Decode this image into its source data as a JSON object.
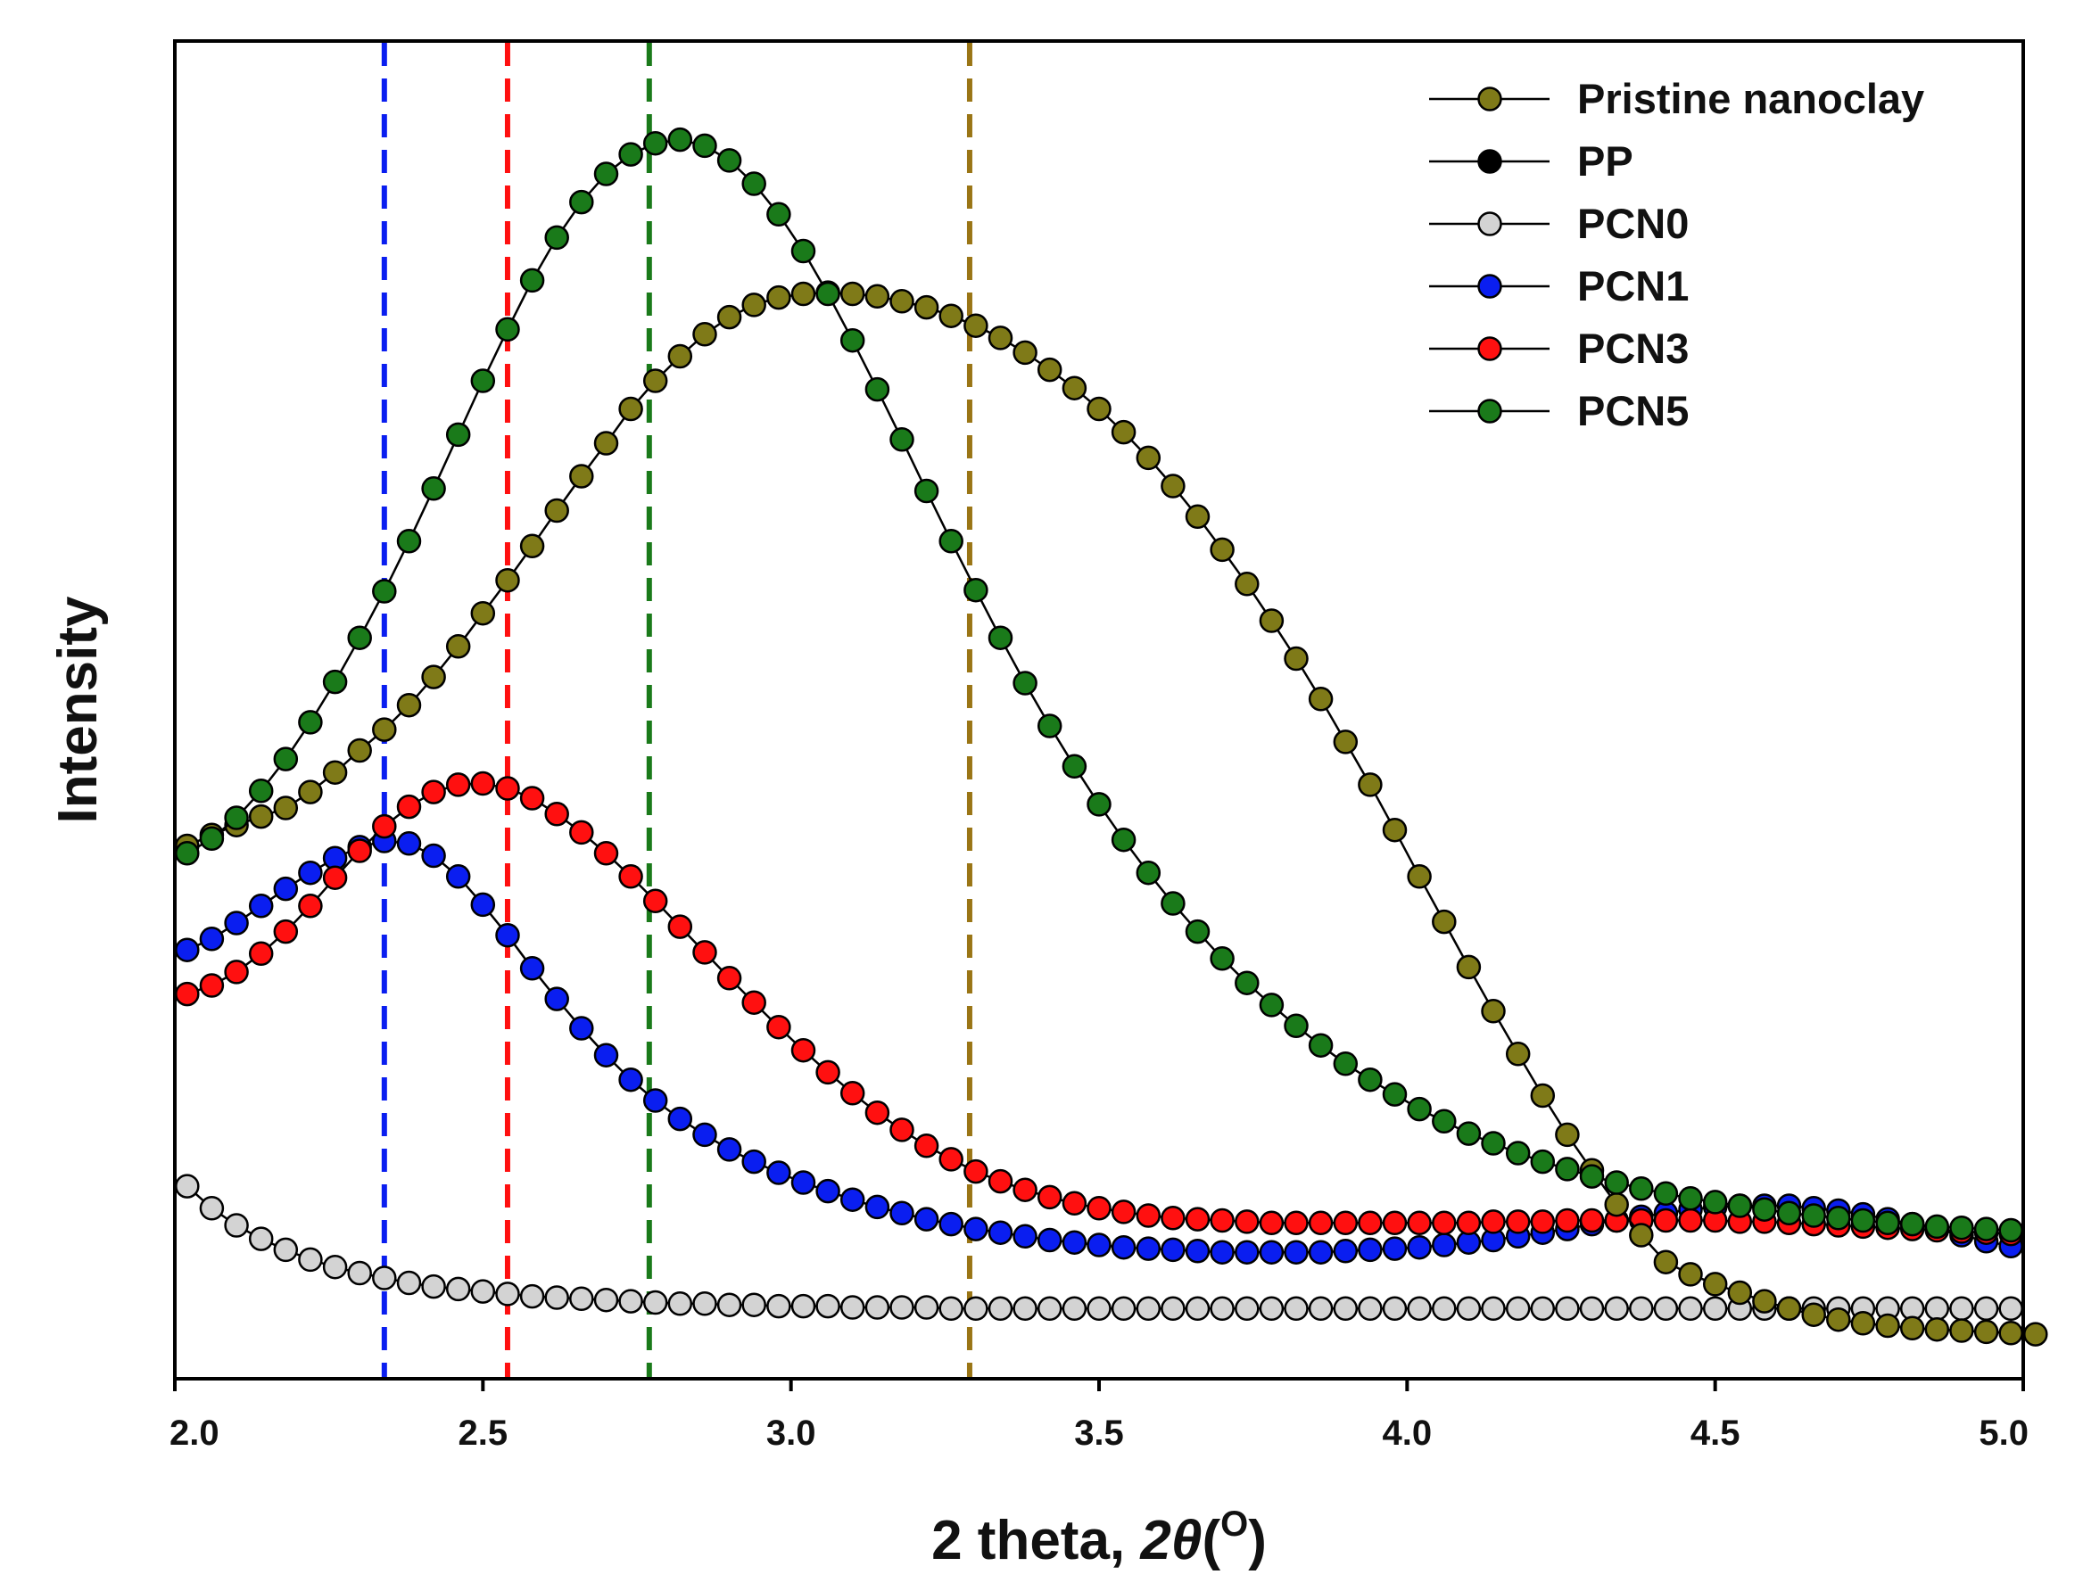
{
  "chart_data": {
    "type": "scatter",
    "title": "",
    "xlabel": "2 theta, 2θ (°)",
    "xlabel_parts": {
      "text": "2 theta, ",
      "symbol": "2θ",
      "unit_open": "(",
      "unit_sup": "O",
      "unit_close": ")"
    },
    "ylabel": "Intensity",
    "xlim": [
      2.0,
      5.0
    ],
    "ylim": [
      0,
      1
    ],
    "grid": false,
    "y_ticks_shown": false,
    "x_ticks": [
      2.0,
      2.5,
      3.0,
      3.5,
      4.0,
      4.5,
      5.0
    ],
    "x_tick_labels": [
      "2.0",
      "2.5",
      "3.0",
      "3.5",
      "4.0",
      "4.5",
      "5.0"
    ],
    "legend_position": "top-right",
    "series": [
      {
        "name": "Pristine nanoclay",
        "color": "#7f7a18",
        "marker": "circle",
        "line": true,
        "x_start": 2.02,
        "x_step": 0.04,
        "values": [
          0.408,
          0.417,
          0.425,
          0.432,
          0.439,
          0.452,
          0.468,
          0.486,
          0.503,
          0.523,
          0.546,
          0.571,
          0.598,
          0.625,
          0.653,
          0.682,
          0.71,
          0.737,
          0.765,
          0.788,
          0.808,
          0.826,
          0.84,
          0.85,
          0.856,
          0.859,
          0.86,
          0.859,
          0.857,
          0.853,
          0.848,
          0.841,
          0.833,
          0.823,
          0.811,
          0.797,
          0.782,
          0.765,
          0.746,
          0.725,
          0.702,
          0.677,
          0.65,
          0.622,
          0.592,
          0.561,
          0.528,
          0.493,
          0.458,
          0.421,
          0.383,
          0.346,
          0.309,
          0.273,
          0.238,
          0.204,
          0.172,
          0.143,
          0.115,
          0.09,
          0.068,
          0.058,
          0.05,
          0.043,
          0.036,
          0.03,
          0.025,
          0.021,
          0.018,
          0.016,
          0.014,
          0.013,
          0.012,
          0.011,
          0.01,
          0.009
        ],
        "values_note": "placeholder-ignored"
      },
      {
        "name": "PP",
        "color": "#000000",
        "marker": "circle",
        "line": true,
        "values": []
      },
      {
        "name": "PCN0",
        "color": "#d3d3d3",
        "marker": "circle",
        "line": true,
        "x_start": 2.02,
        "x_step": 0.04,
        "values": [
          0.13,
          0.112,
          0.098,
          0.087,
          0.078,
          0.07,
          0.064,
          0.059,
          0.055,
          0.051,
          0.048,
          0.046,
          0.044,
          0.042,
          0.04,
          0.039,
          0.038,
          0.037,
          0.036,
          0.035,
          0.034,
          0.034,
          0.033,
          0.033,
          0.032,
          0.032,
          0.032,
          0.031,
          0.031,
          0.031,
          0.031,
          0.03,
          0.03,
          0.03,
          0.03,
          0.03,
          0.03,
          0.03,
          0.03,
          0.03,
          0.03,
          0.03,
          0.03,
          0.03,
          0.03,
          0.03,
          0.03,
          0.03,
          0.03,
          0.03,
          0.03,
          0.03,
          0.03,
          0.03,
          0.03,
          0.03,
          0.03,
          0.03,
          0.03,
          0.03,
          0.03,
          0.03,
          0.03,
          0.03,
          0.03,
          0.03,
          0.03,
          0.03,
          0.03,
          0.03,
          0.03,
          0.03,
          0.03,
          0.03,
          0.03
        ]
      },
      {
        "name": "PCN1",
        "color": "#0a1ef0",
        "marker": "circle",
        "line": true,
        "x_start": 2.02,
        "x_step": 0.04,
        "values": [
          0.323,
          0.332,
          0.345,
          0.359,
          0.373,
          0.386,
          0.398,
          0.407,
          0.412,
          0.41,
          0.4,
          0.383,
          0.36,
          0.335,
          0.308,
          0.283,
          0.259,
          0.237,
          0.217,
          0.2,
          0.185,
          0.172,
          0.16,
          0.15,
          0.141,
          0.133,
          0.126,
          0.119,
          0.113,
          0.108,
          0.103,
          0.099,
          0.095,
          0.092,
          0.089,
          0.086,
          0.084,
          0.082,
          0.08,
          0.079,
          0.078,
          0.077,
          0.076,
          0.076,
          0.076,
          0.076,
          0.076,
          0.077,
          0.078,
          0.079,
          0.08,
          0.082,
          0.084,
          0.086,
          0.089,
          0.092,
          0.095,
          0.099,
          0.102,
          0.105,
          0.108,
          0.111,
          0.113,
          0.114,
          0.114,
          0.114,
          0.112,
          0.11,
          0.107,
          0.103,
          0.099,
          0.095,
          0.09,
          0.085,
          0.081
        ]
      },
      {
        "name": "PCN3",
        "color": "#ff1010",
        "marker": "circle",
        "line": true,
        "x_start": 2.02,
        "x_step": 0.04,
        "values": [
          0.287,
          0.294,
          0.305,
          0.32,
          0.338,
          0.359,
          0.382,
          0.404,
          0.424,
          0.44,
          0.452,
          0.458,
          0.459,
          0.455,
          0.447,
          0.434,
          0.419,
          0.402,
          0.383,
          0.363,
          0.342,
          0.321,
          0.3,
          0.28,
          0.26,
          0.241,
          0.223,
          0.206,
          0.19,
          0.176,
          0.163,
          0.152,
          0.142,
          0.134,
          0.127,
          0.121,
          0.116,
          0.112,
          0.109,
          0.106,
          0.104,
          0.103,
          0.102,
          0.101,
          0.1,
          0.1,
          0.1,
          0.1,
          0.1,
          0.1,
          0.1,
          0.1,
          0.1,
          0.101,
          0.101,
          0.101,
          0.102,
          0.102,
          0.102,
          0.102,
          0.102,
          0.102,
          0.102,
          0.101,
          0.101,
          0.1,
          0.099,
          0.098,
          0.097,
          0.096,
          0.095,
          0.094,
          0.093,
          0.092,
          0.091
        ]
      },
      {
        "name": "PCN5",
        "color": "#1a7a1a",
        "marker": "circle",
        "line": true,
        "x_start": 2.02,
        "x_step": 0.04,
        "values": [
          0.402,
          0.414,
          0.431,
          0.453,
          0.479,
          0.509,
          0.542,
          0.578,
          0.616,
          0.657,
          0.7,
          0.744,
          0.788,
          0.83,
          0.87,
          0.905,
          0.934,
          0.957,
          0.973,
          0.982,
          0.985,
          0.98,
          0.968,
          0.949,
          0.924,
          0.894,
          0.859,
          0.821,
          0.781,
          0.74,
          0.698,
          0.657,
          0.617,
          0.578,
          0.541,
          0.506,
          0.473,
          0.442,
          0.413,
          0.386,
          0.361,
          0.338,
          0.316,
          0.296,
          0.278,
          0.261,
          0.245,
          0.23,
          0.217,
          0.205,
          0.193,
          0.183,
          0.173,
          0.165,
          0.157,
          0.15,
          0.144,
          0.138,
          0.133,
          0.128,
          0.124,
          0.12,
          0.117,
          0.114,
          0.111,
          0.108,
          0.106,
          0.104,
          0.102,
          0.1,
          0.099,
          0.097,
          0.096,
          0.095,
          0.094
        ]
      }
    ],
    "reference_lines": [
      {
        "x": 2.34,
        "color": "#0a1ef0",
        "style": "dashed",
        "series": "PCN1"
      },
      {
        "x": 2.54,
        "color": "#ff1010",
        "style": "dashed",
        "series": "PCN3"
      },
      {
        "x": 2.77,
        "color": "#1a7a1a",
        "style": "dashed",
        "series": "PCN5"
      },
      {
        "x": 3.29,
        "color": "#9a7515",
        "style": "dashed",
        "series": "Pristine nanoclay"
      }
    ]
  }
}
